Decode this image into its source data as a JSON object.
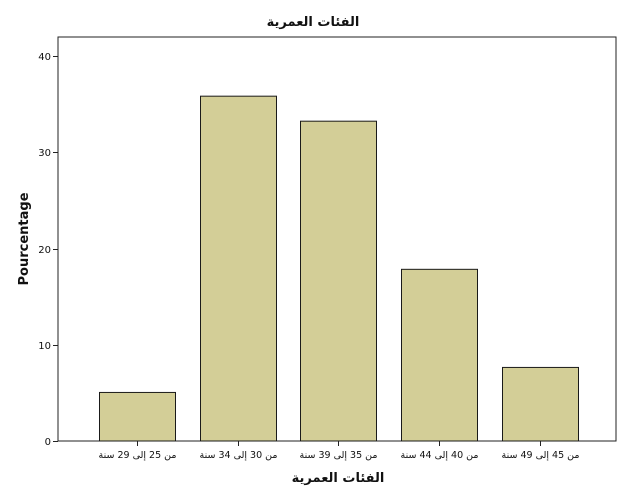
{
  "chart_data": {
    "type": "bar",
    "title": "الفئات العمرية",
    "xlabel": "الفئات العمرية",
    "ylabel": "Pourcentage",
    "categories": [
      "من 25 إلى 29 سنة",
      "من 30 إلى 34 سنة",
      "من 35 إلى 39 سنة",
      "من  40 إلى 44 سنة",
      "من  45 إلى 49 سنة"
    ],
    "values": [
      5.1,
      35.9,
      33.3,
      17.9,
      7.7
    ],
    "ylim": [
      0,
      42
    ],
    "yticks": [
      0,
      10,
      20,
      30,
      40
    ],
    "grid": false,
    "legend": "none",
    "colors": {
      "bar_fill": "#d3ce97",
      "bar_stroke": "#1a1a1a",
      "plot_background": "#ffffff",
      "axis": "#222222"
    }
  }
}
